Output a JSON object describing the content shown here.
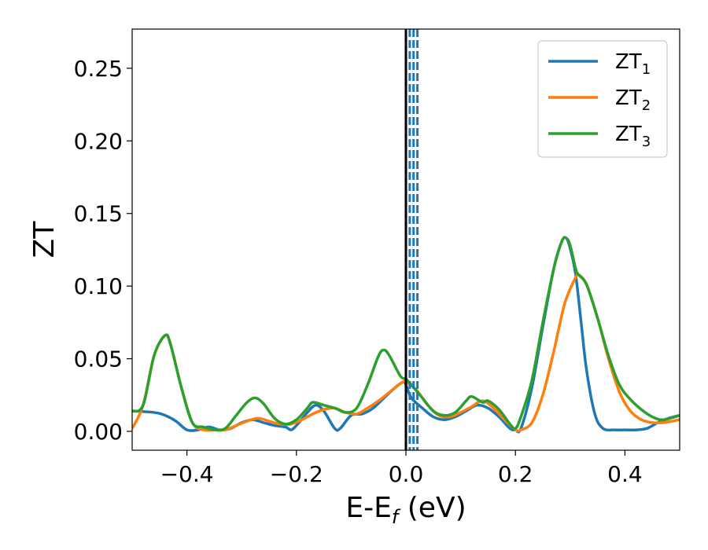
{
  "chart_data": {
    "type": "line",
    "xlabel_main": "E-E",
    "xlabel_sub": "f",
    "xlabel_unit": " (eV)",
    "ylabel": "ZT",
    "xlim": [
      -0.5,
      0.5
    ],
    "ylim": [
      -0.013,
      0.277
    ],
    "grid": false,
    "legend_position": "top-right",
    "xticks": [
      -0.4,
      -0.2,
      0.0,
      0.2,
      0.4
    ],
    "xtick_labels": [
      "−0.4",
      "−0.2",
      "0.0",
      "0.2",
      "0.4"
    ],
    "yticks": [
      0.0,
      0.05,
      0.1,
      0.15,
      0.2,
      0.25
    ],
    "ytick_labels": [
      "0.00",
      "0.05",
      "0.10",
      "0.15",
      "0.20",
      "0.25"
    ],
    "vertical_lines": [
      {
        "x": 0.0,
        "color": "#000000",
        "style": "solid"
      },
      {
        "x": 0.0,
        "color": "#000000",
        "style": "dashed"
      },
      {
        "x": 0.007,
        "color": "#1f77b4",
        "style": "dashed"
      },
      {
        "x": 0.014,
        "color": "#1f77b4",
        "style": "dashed"
      },
      {
        "x": 0.021,
        "color": "#1f77b4",
        "style": "dashed"
      }
    ],
    "series": [
      {
        "name": "ZT",
        "subscript": "1",
        "color": "#1f77b4",
        "points": [
          [
            -0.5,
            0.014
          ],
          [
            -0.46,
            0.013
          ],
          [
            -0.44,
            0.011
          ],
          [
            -0.42,
            0.007
          ],
          [
            -0.4,
            0.001
          ],
          [
            -0.38,
            0.001
          ],
          [
            -0.36,
            0.003
          ],
          [
            -0.34,
            0.001
          ],
          [
            -0.32,
            0.002
          ],
          [
            -0.3,
            0.006
          ],
          [
            -0.28,
            0.008
          ],
          [
            -0.26,
            0.006
          ],
          [
            -0.24,
            0.004
          ],
          [
            -0.22,
            0.003
          ],
          [
            -0.21,
            0.001
          ],
          [
            -0.2,
            0.004
          ],
          [
            -0.18,
            0.013
          ],
          [
            -0.165,
            0.018
          ],
          [
            -0.15,
            0.014
          ],
          [
            -0.13,
            0.002
          ],
          [
            -0.12,
            0.002
          ],
          [
            -0.1,
            0.011
          ],
          [
            -0.08,
            0.012
          ],
          [
            -0.06,
            0.016
          ],
          [
            -0.04,
            0.023
          ],
          [
            -0.02,
            0.03
          ],
          [
            -0.005,
            0.034
          ],
          [
            0.0,
            0.032
          ],
          [
            0.01,
            0.023
          ],
          [
            0.03,
            0.016
          ],
          [
            0.05,
            0.01
          ],
          [
            0.07,
            0.008
          ],
          [
            0.09,
            0.01
          ],
          [
            0.11,
            0.014
          ],
          [
            0.13,
            0.018
          ],
          [
            0.15,
            0.016
          ],
          [
            0.17,
            0.01
          ],
          [
            0.19,
            0.002
          ],
          [
            0.2,
            0.001
          ],
          [
            0.21,
            0.002
          ],
          [
            0.23,
            0.03
          ],
          [
            0.25,
            0.072
          ],
          [
            0.27,
            0.112
          ],
          [
            0.285,
            0.131
          ],
          [
            0.293,
            0.133
          ],
          [
            0.3,
            0.126
          ],
          [
            0.31,
            0.108
          ],
          [
            0.32,
            0.075
          ],
          [
            0.33,
            0.042
          ],
          [
            0.345,
            0.012
          ],
          [
            0.36,
            0.002
          ],
          [
            0.38,
            0.001
          ],
          [
            0.4,
            0.001
          ],
          [
            0.42,
            0.001
          ],
          [
            0.44,
            0.002
          ],
          [
            0.46,
            0.006
          ],
          [
            0.48,
            0.009
          ],
          [
            0.5,
            0.011
          ]
        ]
      },
      {
        "name": "ZT",
        "subscript": "2",
        "color": "#ff7f0e",
        "points": [
          [
            -0.5,
            0.002
          ],
          [
            -0.48,
            0.018
          ],
          [
            -0.46,
            0.052
          ],
          [
            -0.44,
            0.066
          ],
          [
            -0.43,
            0.06
          ],
          [
            -0.41,
            0.03
          ],
          [
            -0.39,
            0.006
          ],
          [
            -0.37,
            0.001
          ],
          [
            -0.35,
            0.001
          ],
          [
            -0.33,
            0.001
          ],
          [
            -0.31,
            0.004
          ],
          [
            -0.29,
            0.007
          ],
          [
            -0.27,
            0.009
          ],
          [
            -0.25,
            0.007
          ],
          [
            -0.23,
            0.005
          ],
          [
            -0.21,
            0.005
          ],
          [
            -0.19,
            0.008
          ],
          [
            -0.17,
            0.012
          ],
          [
            -0.15,
            0.015
          ],
          [
            -0.13,
            0.016
          ],
          [
            -0.11,
            0.013
          ],
          [
            -0.09,
            0.012
          ],
          [
            -0.07,
            0.016
          ],
          [
            -0.05,
            0.021
          ],
          [
            -0.03,
            0.027
          ],
          [
            -0.01,
            0.033
          ],
          [
            0.0,
            0.034
          ],
          [
            0.02,
            0.028
          ],
          [
            0.04,
            0.018
          ],
          [
            0.06,
            0.011
          ],
          [
            0.08,
            0.01
          ],
          [
            0.1,
            0.013
          ],
          [
            0.12,
            0.017
          ],
          [
            0.14,
            0.021
          ],
          [
            0.16,
            0.016
          ],
          [
            0.18,
            0.008
          ],
          [
            0.2,
            0.001
          ],
          [
            0.21,
            0.001
          ],
          [
            0.23,
            0.006
          ],
          [
            0.25,
            0.025
          ],
          [
            0.27,
            0.055
          ],
          [
            0.29,
            0.088
          ],
          [
            0.31,
            0.106
          ],
          [
            0.315,
            0.108
          ],
          [
            0.33,
            0.101
          ],
          [
            0.35,
            0.078
          ],
          [
            0.37,
            0.05
          ],
          [
            0.39,
            0.027
          ],
          [
            0.41,
            0.014
          ],
          [
            0.43,
            0.008
          ],
          [
            0.45,
            0.006
          ],
          [
            0.47,
            0.006
          ],
          [
            0.5,
            0.008
          ]
        ]
      },
      {
        "name": "ZT",
        "subscript": "3",
        "color": "#2ca02c",
        "points": [
          [
            -0.5,
            0.014
          ],
          [
            -0.48,
            0.018
          ],
          [
            -0.46,
            0.052
          ],
          [
            -0.44,
            0.066
          ],
          [
            -0.43,
            0.06
          ],
          [
            -0.41,
            0.03
          ],
          [
            -0.39,
            0.006
          ],
          [
            -0.37,
            0.003
          ],
          [
            -0.35,
            0.001
          ],
          [
            -0.33,
            0.002
          ],
          [
            -0.31,
            0.011
          ],
          [
            -0.29,
            0.02
          ],
          [
            -0.275,
            0.023
          ],
          [
            -0.26,
            0.019
          ],
          [
            -0.24,
            0.009
          ],
          [
            -0.22,
            0.005
          ],
          [
            -0.2,
            0.008
          ],
          [
            -0.18,
            0.016
          ],
          [
            -0.17,
            0.02
          ],
          [
            -0.15,
            0.018
          ],
          [
            -0.13,
            0.016
          ],
          [
            -0.11,
            0.013
          ],
          [
            -0.09,
            0.016
          ],
          [
            -0.07,
            0.032
          ],
          [
            -0.05,
            0.052
          ],
          [
            -0.04,
            0.056
          ],
          [
            -0.03,
            0.052
          ],
          [
            -0.01,
            0.038
          ],
          [
            0.0,
            0.036
          ],
          [
            0.01,
            0.032
          ],
          [
            0.03,
            0.023
          ],
          [
            0.05,
            0.014
          ],
          [
            0.07,
            0.011
          ],
          [
            0.09,
            0.013
          ],
          [
            0.11,
            0.021
          ],
          [
            0.12,
            0.024
          ],
          [
            0.14,
            0.02
          ],
          [
            0.15,
            0.021
          ],
          [
            0.17,
            0.015
          ],
          [
            0.19,
            0.005
          ],
          [
            0.2,
            0.002
          ],
          [
            0.21,
            0.01
          ],
          [
            0.23,
            0.035
          ],
          [
            0.25,
            0.075
          ],
          [
            0.27,
            0.112
          ],
          [
            0.285,
            0.131
          ],
          [
            0.293,
            0.133
          ],
          [
            0.3,
            0.128
          ],
          [
            0.31,
            0.112
          ],
          [
            0.315,
            0.108
          ],
          [
            0.33,
            0.101
          ],
          [
            0.35,
            0.078
          ],
          [
            0.37,
            0.052
          ],
          [
            0.39,
            0.032
          ],
          [
            0.41,
            0.022
          ],
          [
            0.43,
            0.015
          ],
          [
            0.45,
            0.01
          ],
          [
            0.47,
            0.008
          ],
          [
            0.5,
            0.011
          ]
        ]
      }
    ]
  }
}
